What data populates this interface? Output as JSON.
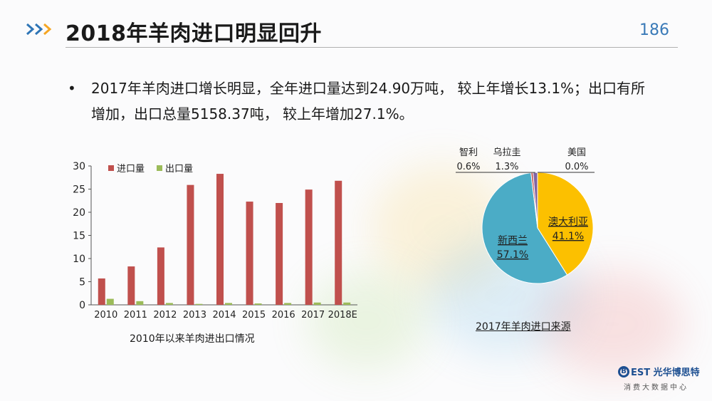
{
  "slide": {
    "title": "2018年羊肉进口明显回升",
    "page_number": "186",
    "bullet_symbol": "•",
    "bullet_text": "2017年羊肉进口增长明显，全年进口量达到24.90万吨， 较上年增长13.1%；出口有所增加，出口总量5158.37吨， 较上年增加27.1%。"
  },
  "chart_data": [
    {
      "type": "bar",
      "title": "2010年以来羊肉进出口情况",
      "categories": [
        "2010",
        "2011",
        "2012",
        "2013",
        "2014",
        "2015",
        "2016",
        "2017",
        "2018E"
      ],
      "series": [
        {
          "name": "进口量",
          "color": "#c0504d",
          "values": [
            5.7,
            8.3,
            12.4,
            25.9,
            28.3,
            22.3,
            22.0,
            24.9,
            26.8
          ]
        },
        {
          "name": "出口量",
          "color": "#9bbb59",
          "values": [
            1.3,
            0.8,
            0.4,
            0.2,
            0.4,
            0.3,
            0.4,
            0.5,
            0.5
          ]
        }
      ],
      "yticks": [
        "0",
        "5",
        "10",
        "15",
        "20",
        "25",
        "30"
      ],
      "ylim": [
        0,
        30
      ],
      "legend": "top-left"
    },
    {
      "type": "pie",
      "title": "2017年羊肉进口来源",
      "slices": [
        {
          "name": "新西兰",
          "value": 57.1,
          "label": "57.1%",
          "color": "#4bacc6"
        },
        {
          "name": "澳大利亚",
          "value": 41.1,
          "label": "41.1%",
          "color": "#fcc000"
        },
        {
          "name": "智利",
          "value": 0.6,
          "label": "0.6%",
          "color": "#c0504d"
        },
        {
          "name": "乌拉圭",
          "value": 1.3,
          "label": "1.3%",
          "color": "#8064a2"
        },
        {
          "name": "美国",
          "value": 0.0,
          "label": "0.0%",
          "color": "#9bbb59"
        }
      ]
    }
  ],
  "logo": {
    "mark": "B",
    "brand": "EST 光华博思特",
    "tagline": "消费大数据中心"
  }
}
